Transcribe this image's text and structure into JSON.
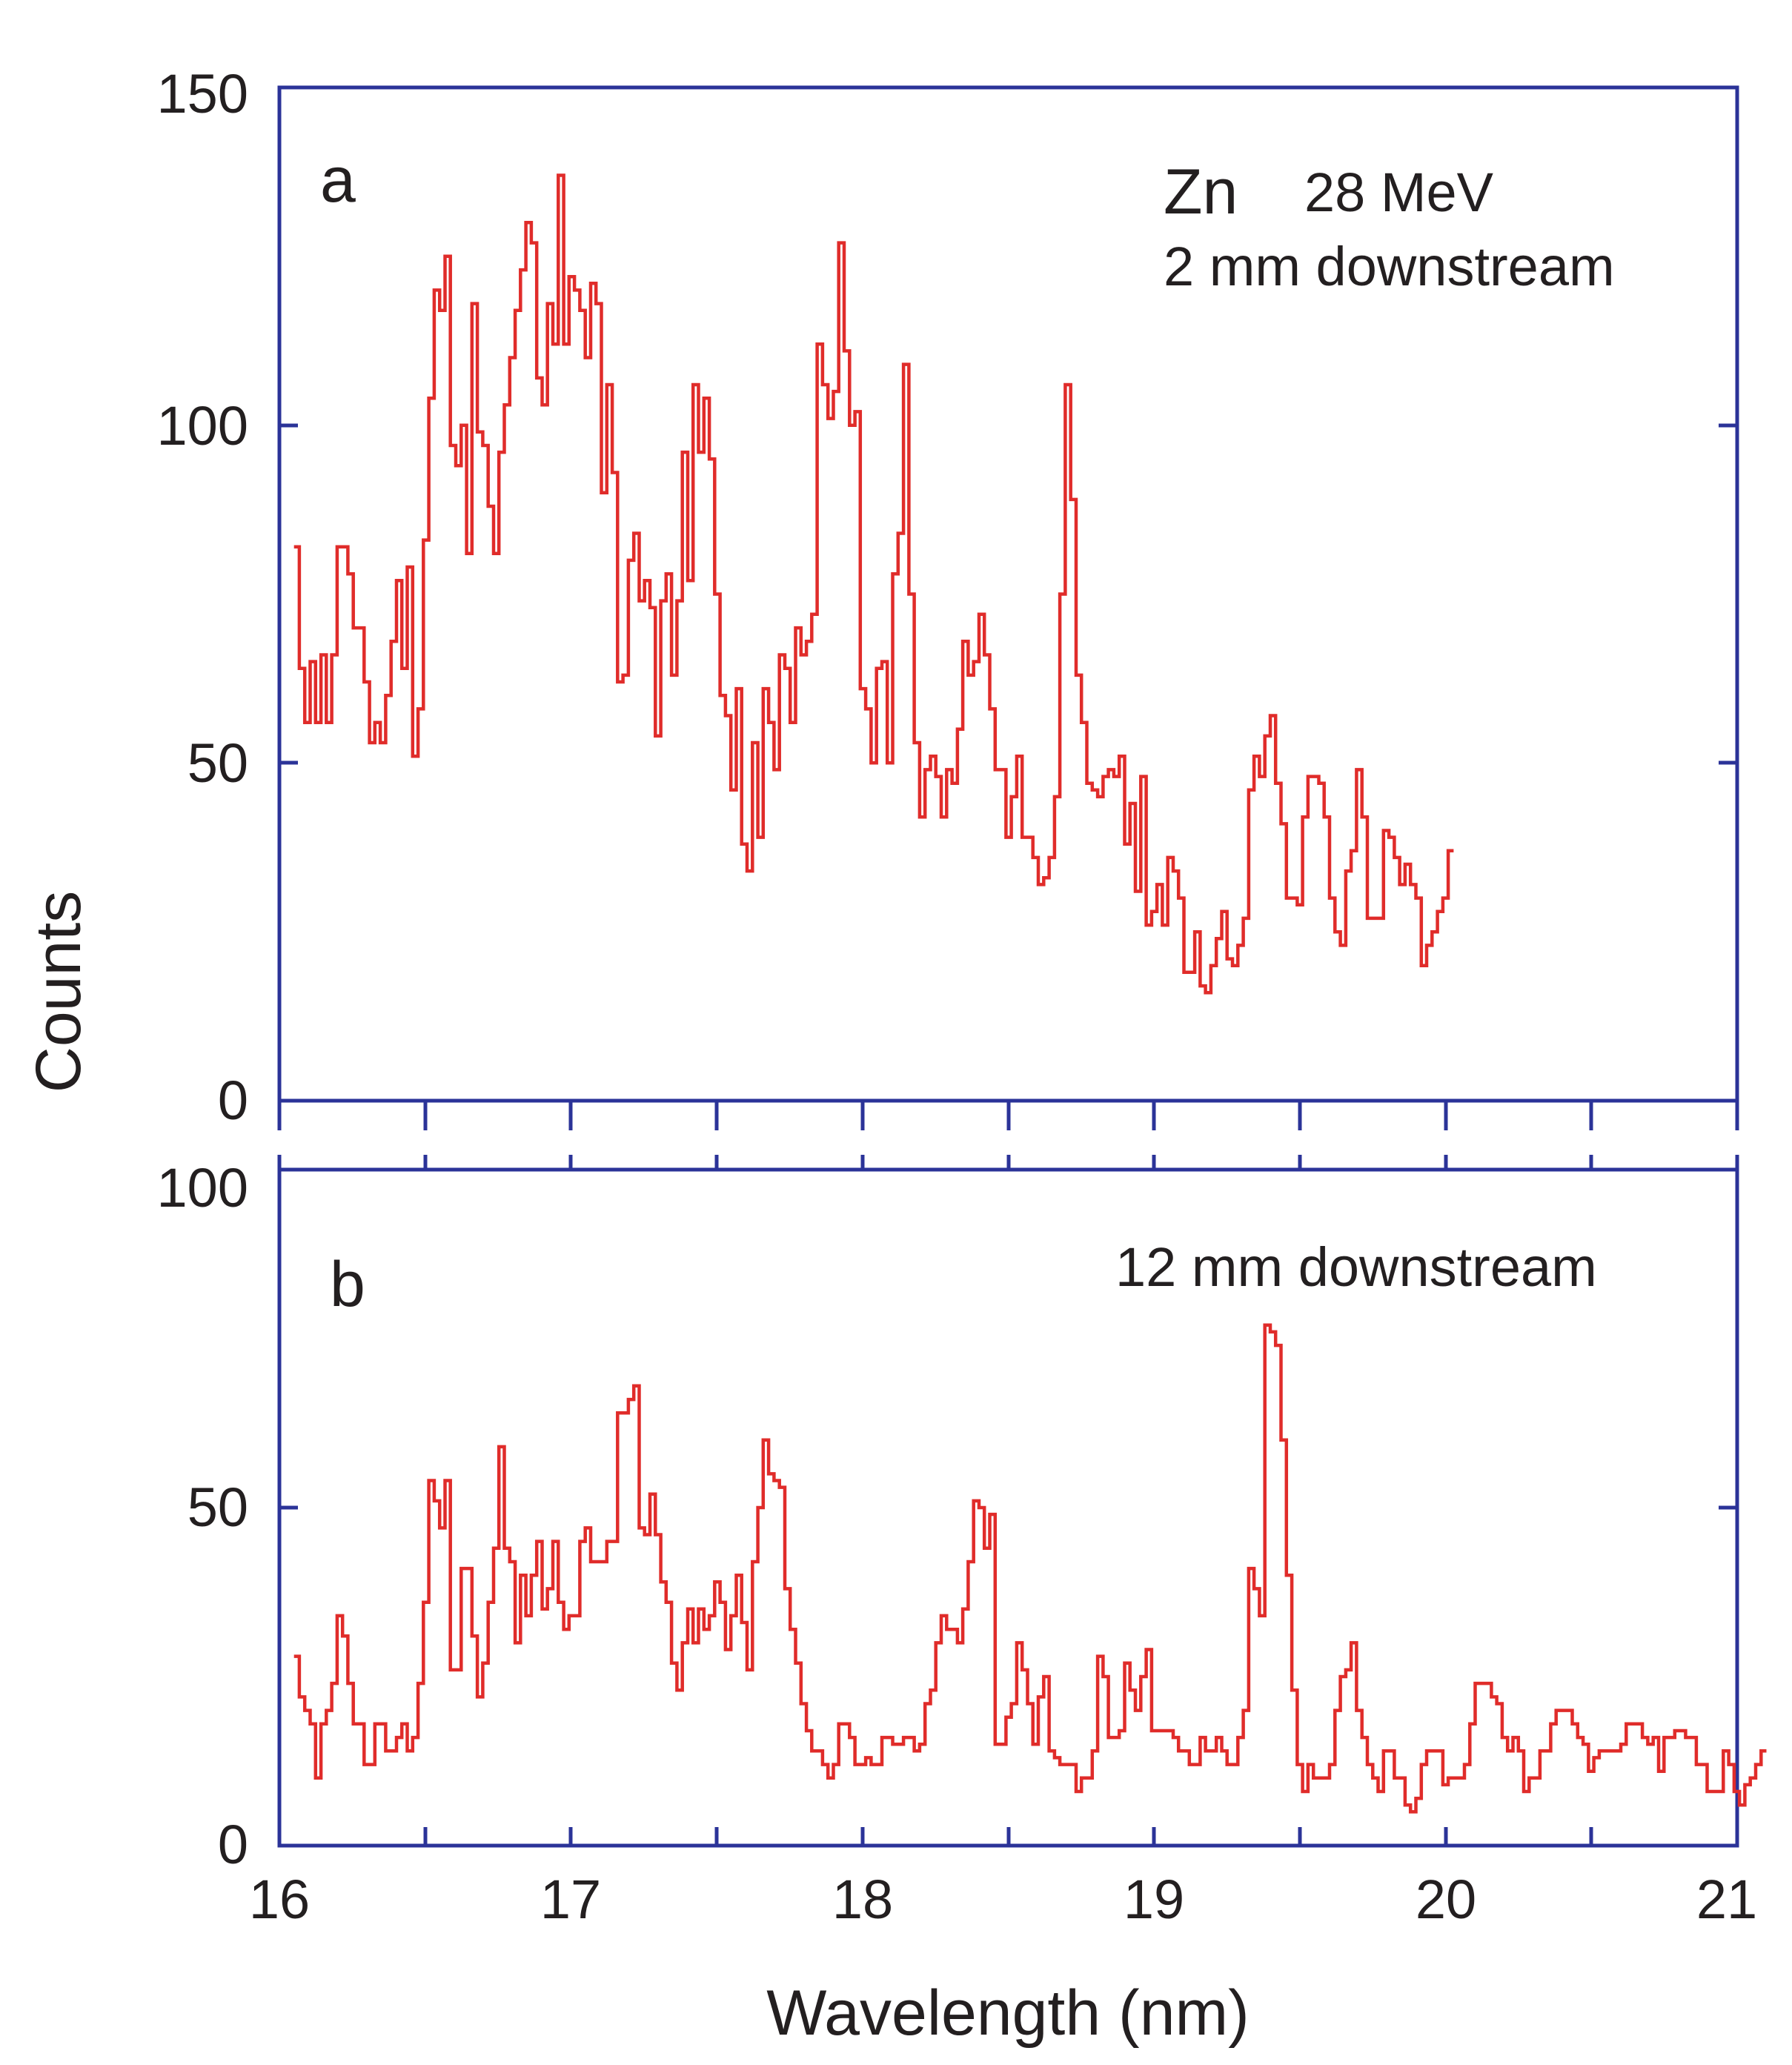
{
  "chart_data": [
    {
      "type": "line",
      "step": true,
      "panel_label": "a",
      "annotation_element": "Zn",
      "annotation_energy": "28 MeV",
      "annotation_position": "2 mm downstream",
      "xlabel": "Wavelength (nm)",
      "ylabel": "Counts",
      "xlim": [
        16,
        21
      ],
      "ylim": [
        0,
        150
      ],
      "x_ticks": [
        "16",
        "17",
        "18",
        "19",
        "20",
        "21"
      ],
      "y_ticks": [
        "0",
        "50",
        "100",
        "150"
      ],
      "color": "#e02c2a",
      "x_start": 16.05,
      "x_step": 0.0185,
      "values": [
        82,
        64,
        56,
        65,
        56,
        66,
        56,
        66,
        82,
        82,
        78,
        70,
        70,
        62,
        53,
        56,
        53,
        60,
        68,
        77,
        64,
        79,
        51,
        58,
        83,
        104,
        120,
        117,
        125,
        97,
        94,
        100,
        81,
        118,
        99,
        97,
        88,
        81,
        96,
        103,
        110,
        117,
        123,
        130,
        127,
        107,
        103,
        118,
        112,
        137,
        112,
        122,
        120,
        117,
        110,
        121,
        118,
        90,
        106,
        93,
        62,
        63,
        80,
        84,
        74,
        77,
        73,
        54,
        74,
        78,
        63,
        74,
        96,
        77,
        106,
        96,
        104,
        95,
        75,
        60,
        57,
        46,
        61,
        38,
        34,
        53,
        39,
        61,
        56,
        49,
        66,
        64,
        56,
        70,
        66,
        68,
        72,
        112,
        106,
        101,
        105,
        127,
        111,
        100,
        102,
        61,
        58,
        50,
        64,
        65,
        50,
        78,
        84,
        109,
        75,
        53,
        42,
        49,
        51,
        48,
        42,
        49,
        47,
        55,
        68,
        63,
        65,
        72,
        66,
        58,
        49,
        49,
        39,
        45,
        51,
        39,
        39,
        36,
        32,
        33,
        36,
        45,
        75,
        106,
        89,
        63,
        56,
        47,
        46,
        45,
        48,
        49,
        48,
        51,
        38,
        44,
        31,
        48,
        26,
        28,
        32,
        26,
        36,
        34,
        30,
        19,
        19,
        25,
        17,
        16,
        20,
        24,
        28,
        21,
        20,
        23,
        27,
        46,
        51,
        48,
        54,
        57,
        47,
        41,
        30,
        30,
        29,
        42,
        48,
        48,
        47,
        42,
        30,
        25,
        23,
        34,
        37,
        49,
        42,
        27,
        27,
        27,
        40,
        39,
        36,
        32,
        35,
        32,
        30,
        20,
        23,
        25,
        28,
        30,
        37
      ]
    },
    {
      "type": "line",
      "step": true,
      "panel_label": "b",
      "annotation_position": "12 mm downstream",
      "xlabel": "Wavelength (nm)",
      "ylabel": "Counts",
      "xlim": [
        16,
        21
      ],
      "ylim": [
        0,
        100
      ],
      "x_ticks": [
        "16",
        "17",
        "18",
        "19",
        "20",
        "21"
      ],
      "y_ticks": [
        "0",
        "50",
        "100"
      ],
      "color": "#e02c2a",
      "x_start": 16.05,
      "x_step": 0.0185,
      "values": [
        28,
        22,
        20,
        18,
        10,
        18,
        20,
        24,
        34,
        31,
        24,
        18,
        18,
        12,
        12,
        18,
        18,
        14,
        14,
        16,
        18,
        14,
        16,
        24,
        36,
        54,
        51,
        47,
        54,
        26,
        26,
        41,
        41,
        31,
        22,
        27,
        36,
        44,
        59,
        44,
        42,
        30,
        40,
        34,
        40,
        45,
        35,
        38,
        45,
        36,
        32,
        34,
        34,
        45,
        47,
        42,
        42,
        42,
        45,
        45,
        64,
        64,
        66,
        68,
        47,
        46,
        52,
        46,
        39,
        36,
        27,
        23,
        30,
        35,
        30,
        35,
        32,
        34,
        39,
        36,
        29,
        34,
        40,
        33,
        26,
        42,
        50,
        60,
        55,
        54,
        53,
        38,
        32,
        27,
        21,
        17,
        14,
        14,
        12,
        10,
        12,
        18,
        18,
        16,
        12,
        12,
        13,
        12,
        12,
        16,
        16,
        15,
        15,
        16,
        16,
        14,
        15,
        21,
        23,
        30,
        34,
        32,
        32,
        30,
        35,
        42,
        51,
        50,
        44,
        49,
        15,
        15,
        19,
        21,
        30,
        26,
        21,
        15,
        22,
        25,
        14,
        13,
        12,
        12,
        12,
        8,
        10,
        10,
        14,
        28,
        25,
        16,
        16,
        17,
        27,
        23,
        20,
        25,
        29,
        17,
        17,
        17,
        17,
        16,
        14,
        14,
        12,
        12,
        16,
        14,
        14,
        16,
        14,
        12,
        12,
        16,
        20,
        41,
        38,
        34,
        77,
        76,
        74,
        60,
        40,
        23,
        12,
        8,
        12,
        10,
        10,
        10,
        12,
        20,
        25,
        26,
        30,
        20,
        16,
        12,
        10,
        8,
        14,
        14,
        10,
        10,
        6,
        5,
        7,
        12,
        14,
        14,
        14,
        9,
        10,
        10,
        10,
        12,
        18,
        24,
        24,
        24,
        22,
        21,
        16,
        14,
        16,
        14,
        8,
        10,
        10,
        14,
        14,
        18,
        20,
        20,
        20,
        18,
        16,
        15,
        11,
        13,
        14,
        14,
        14,
        14,
        15,
        18,
        18,
        18,
        16,
        15,
        16,
        11,
        16,
        16,
        17,
        17,
        16,
        16,
        12,
        12,
        8,
        8,
        8,
        14,
        12,
        8,
        6,
        9,
        10,
        12,
        14
      ]
    }
  ]
}
